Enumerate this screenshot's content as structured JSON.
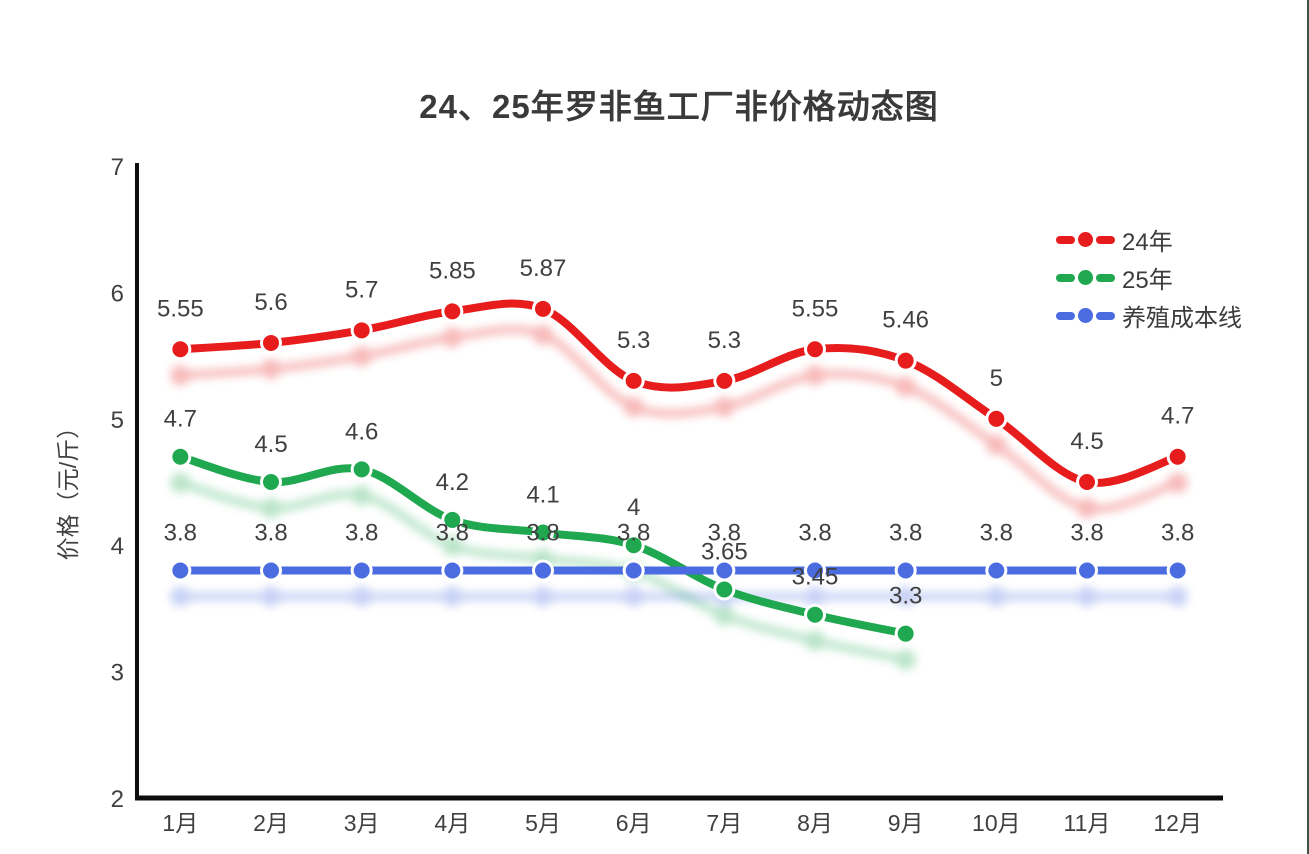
{
  "window": {
    "right_edge_color": "#3e5345"
  },
  "chart_data": {
    "type": "line",
    "title": "24、25年罗非鱼工厂非价格动态图",
    "xlabel": "",
    "ylabel": "价格（元/斤）",
    "ylim": [
      2,
      7
    ],
    "yticks": [
      7,
      6,
      5,
      4,
      3,
      2
    ],
    "categories": [
      "1月",
      "2月",
      "3月",
      "4月",
      "5月",
      "6月",
      "7月",
      "8月",
      "9月",
      "10月",
      "11月",
      "12月"
    ],
    "grid": false,
    "smooth": true,
    "marker": "circle",
    "legend_position": "upper-right-inside",
    "series": [
      {
        "name": "24年",
        "color": "#e71d1d",
        "values": [
          5.55,
          5.6,
          5.7,
          5.85,
          5.87,
          5.3,
          5.3,
          5.55,
          5.46,
          5,
          4.5,
          4.7
        ]
      },
      {
        "name": "25年",
        "color": "#1fa84f",
        "values": [
          4.7,
          4.5,
          4.6,
          4.2,
          4.1,
          4,
          3.65,
          3.45,
          3.3
        ]
      },
      {
        "name": "养殖成本线",
        "color": "#4a6ce0",
        "values": [
          3.8,
          3.8,
          3.8,
          3.8,
          3.8,
          3.8,
          3.8,
          3.8,
          3.8,
          3.8,
          3.8,
          3.8
        ]
      }
    ],
    "colors": {
      "data_label": "#404040",
      "axis": "#0d0d0d",
      "tick_label": "#404040",
      "title": "#3a3a3a"
    }
  }
}
